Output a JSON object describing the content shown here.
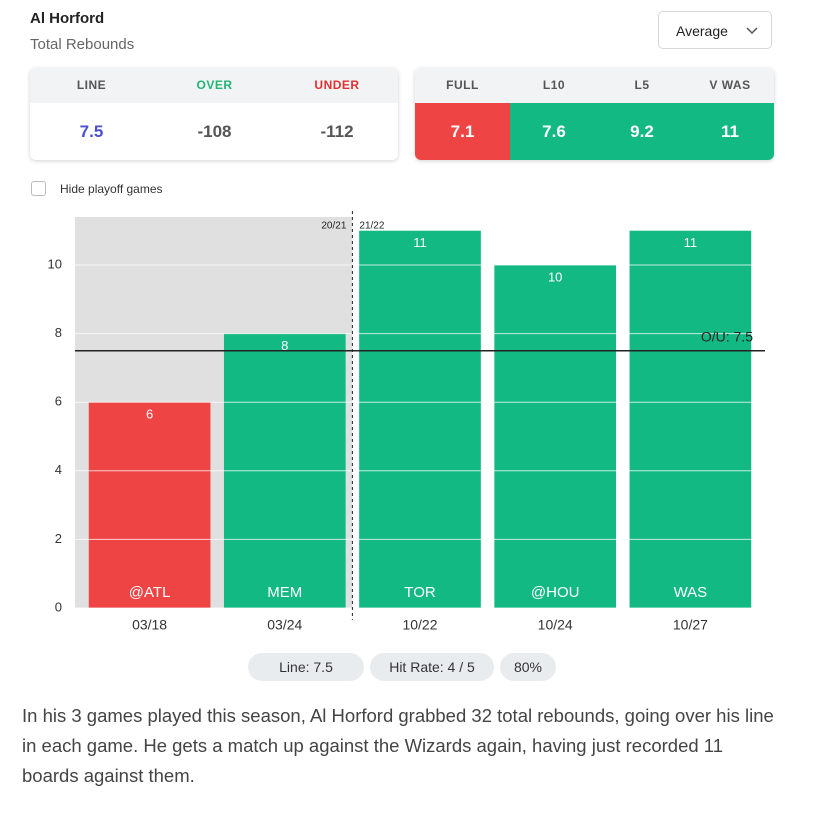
{
  "header": {
    "title": "Al Horford",
    "subtitle": "Total Rebounds",
    "dropdown": "Average"
  },
  "odds": {
    "headers": [
      "LINE",
      "OVER",
      "UNDER"
    ],
    "values": [
      "7.5",
      "-108",
      "-112"
    ]
  },
  "averages": {
    "headers": [
      "FULL",
      "L10",
      "L5",
      "V WAS"
    ],
    "values": [
      "7.1",
      "7.6",
      "9.2",
      "11"
    ]
  },
  "filter": {
    "label": "Hide playoff games",
    "checked": false
  },
  "chart_data": {
    "type": "bar",
    "categories": [
      "@ATL",
      "MEM",
      "TOR",
      "@HOU",
      "WAS"
    ],
    "dates": [
      "03/18",
      "03/24",
      "10/22",
      "10/24",
      "10/27"
    ],
    "seasons": [
      "20/21",
      "20/21",
      "21/22",
      "21/22",
      "21/22"
    ],
    "values": [
      6,
      8,
      11,
      10,
      11
    ],
    "colors": [
      "#ef4444",
      "#13b982",
      "#13b982",
      "#13b982",
      "#13b982"
    ],
    "line": {
      "value": 7.5,
      "label": "O/U: 7.5"
    },
    "ylim": [
      0,
      11.4
    ],
    "yticks": [
      0,
      2,
      4,
      6,
      8,
      10
    ],
    "grid": true
  },
  "summary_pills": [
    "Line: 7.5",
    "Hit Rate: 4 / 5",
    "80%"
  ],
  "paragraph": "In his 3 games played this season, Al Horford grabbed 32 total rebounds, going over his line in each game. He gets a match up against the Wizards again, having just recorded 11 boards against them."
}
